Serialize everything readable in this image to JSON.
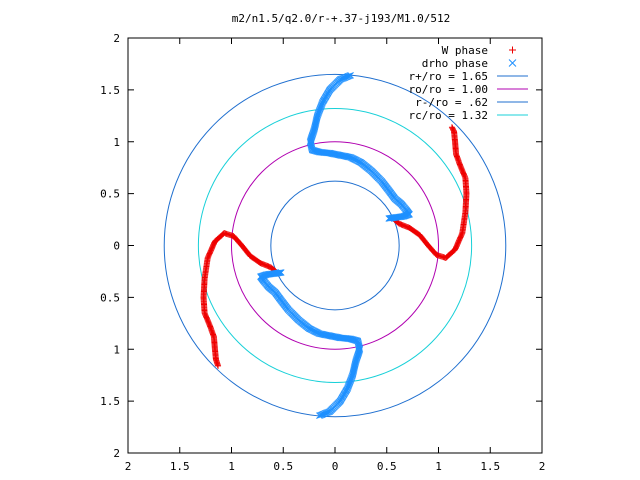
{
  "chart_data": {
    "type": "scatter",
    "title": "m2/n1.5/q2.0/r-+.37-j193/M1.0/512",
    "xlim": [
      -2,
      2
    ],
    "ylim": [
      -2,
      2
    ],
    "x_ticks": [
      -2,
      -1.5,
      -1,
      -0.5,
      0,
      0.5,
      1,
      1.5,
      2
    ],
    "y_ticks": [
      -2,
      -1.5,
      -1,
      -0.5,
      0,
      0.5,
      1,
      1.5,
      2
    ],
    "x_tick_labels": [
      "2",
      "1.5",
      "1",
      "0.5",
      "0",
      "0.5",
      "1",
      "1.5",
      "2"
    ],
    "y_tick_labels": [
      "2",
      "1.5",
      "1",
      "0.5",
      "0",
      "0.5",
      "1",
      "1.5",
      "2"
    ],
    "grid": false,
    "legend_position": "top-right",
    "circles": [
      {
        "name": "r+/ro = 1.65",
        "radius": 1.65,
        "color": "#1f6fcf"
      },
      {
        "name": "ro/ro = 1.00",
        "radius": 1.0,
        "color": "#b000b0"
      },
      {
        "name": "r-/ro = .62",
        "radius": 0.62,
        "color": "#1f6fcf"
      },
      {
        "name": "rc/ro = 1.32",
        "radius": 1.32,
        "color": "#18d0d8"
      }
    ],
    "series": [
      {
        "name": "W phase",
        "marker": "+",
        "color": "#ee0000",
        "arms": [
          [
            [
              0.55,
              0.27
            ],
            [
              0.62,
              0.21
            ],
            [
              0.72,
              0.17
            ],
            [
              0.82,
              0.1
            ],
            [
              0.9,
              0.0
            ],
            [
              0.98,
              -0.09
            ],
            [
              1.07,
              -0.12
            ],
            [
              1.16,
              -0.04
            ],
            [
              1.23,
              0.12
            ],
            [
              1.26,
              0.32
            ],
            [
              1.27,
              0.5
            ],
            [
              1.26,
              0.65
            ],
            [
              1.21,
              0.77
            ],
            [
              1.17,
              0.88
            ],
            [
              1.16,
              1.0
            ],
            [
              1.15,
              1.1
            ],
            [
              1.13,
              1.14
            ]
          ],
          [
            [
              -0.55,
              -0.27
            ],
            [
              -0.62,
              -0.21
            ],
            [
              -0.72,
              -0.17
            ],
            [
              -0.82,
              -0.1
            ],
            [
              -0.9,
              0.0
            ],
            [
              -0.98,
              0.09
            ],
            [
              -1.07,
              0.12
            ],
            [
              -1.16,
              0.04
            ],
            [
              -1.23,
              -0.12
            ],
            [
              -1.26,
              -0.32
            ],
            [
              -1.27,
              -0.5
            ],
            [
              -1.26,
              -0.65
            ],
            [
              -1.21,
              -0.77
            ],
            [
              -1.17,
              -0.88
            ],
            [
              -1.16,
              -1.0
            ],
            [
              -1.15,
              -1.1
            ],
            [
              -1.13,
              -1.16
            ]
          ]
        ]
      },
      {
        "name": "drho phase",
        "marker": "x",
        "color": "#1e90ff",
        "arms": [
          [
            [
              0.15,
              1.64
            ],
            [
              0.05,
              1.6
            ],
            [
              -0.05,
              1.5
            ],
            [
              -0.12,
              1.38
            ],
            [
              -0.17,
              1.25
            ],
            [
              -0.2,
              1.12
            ],
            [
              -0.24,
              1.0
            ],
            [
              -0.22,
              0.92
            ],
            [
              -0.15,
              0.9
            ],
            [
              -0.05,
              0.89
            ],
            [
              0.05,
              0.87
            ],
            [
              0.15,
              0.85
            ],
            [
              0.25,
              0.8
            ],
            [
              0.35,
              0.72
            ],
            [
              0.45,
              0.62
            ],
            [
              0.52,
              0.53
            ],
            [
              0.58,
              0.45
            ],
            [
              0.64,
              0.4
            ],
            [
              0.69,
              0.34
            ],
            [
              0.72,
              0.3
            ],
            [
              0.66,
              0.28
            ],
            [
              0.58,
              0.27
            ],
            [
              0.52,
              0.26
            ]
          ],
          [
            [
              -0.15,
              -1.64
            ],
            [
              -0.05,
              -1.6
            ],
            [
              0.05,
              -1.5
            ],
            [
              0.12,
              -1.38
            ],
            [
              0.17,
              -1.25
            ],
            [
              0.2,
              -1.12
            ],
            [
              0.24,
              -1.0
            ],
            [
              0.22,
              -0.92
            ],
            [
              0.15,
              -0.9
            ],
            [
              0.05,
              -0.89
            ],
            [
              -0.05,
              -0.87
            ],
            [
              -0.15,
              -0.85
            ],
            [
              -0.25,
              -0.8
            ],
            [
              -0.35,
              -0.72
            ],
            [
              -0.45,
              -0.62
            ],
            [
              -0.52,
              -0.53
            ],
            [
              -0.58,
              -0.45
            ],
            [
              -0.64,
              -0.4
            ],
            [
              -0.69,
              -0.34
            ],
            [
              -0.72,
              -0.3
            ],
            [
              -0.66,
              -0.28
            ],
            [
              -0.58,
              -0.27
            ],
            [
              -0.52,
              -0.26
            ]
          ]
        ]
      }
    ]
  }
}
